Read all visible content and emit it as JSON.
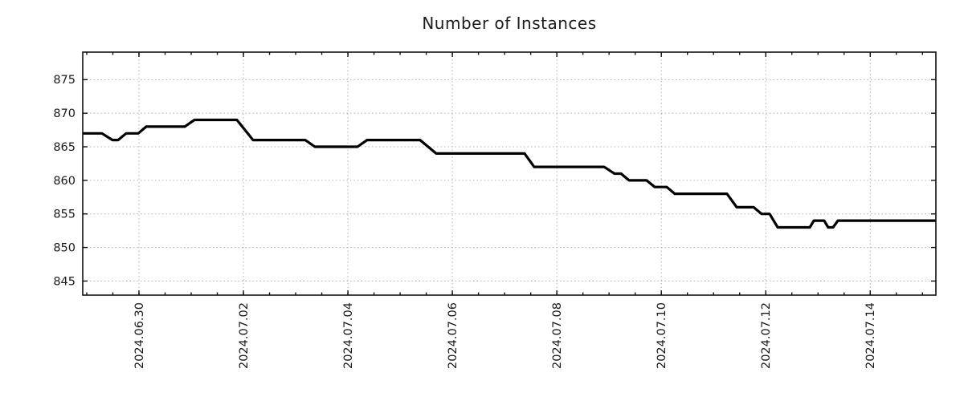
{
  "title": "Number of Instances",
  "styles": {
    "background": "#ffffff",
    "line_color": "#000000",
    "spine_color": "#111111",
    "grid_color": "#b0b0b0",
    "tick_label_color": "#1a1a1a",
    "title_color": "#1c1c1c"
  },
  "chart_data": {
    "type": "line",
    "title": "Number of Instances",
    "xlabel": "",
    "ylabel": "",
    "legend_position": "none",
    "grid": {
      "show": true,
      "style": "dotted"
    },
    "x_axis": {
      "domain": [
        "2024-06-28T22:10",
        "2024-07-15T06:10"
      ],
      "major_ticks": [
        {
          "t": "2024-06-30T00:00",
          "label": "2024.06.30"
        },
        {
          "t": "2024-07-02T00:00",
          "label": "2024.07.02"
        },
        {
          "t": "2024-07-04T00:00",
          "label": "2024.07.04"
        },
        {
          "t": "2024-07-06T00:00",
          "label": "2024.07.06"
        },
        {
          "t": "2024-07-08T00:00",
          "label": "2024.07.08"
        },
        {
          "t": "2024-07-10T00:00",
          "label": "2024.07.10"
        },
        {
          "t": "2024-07-12T00:00",
          "label": "2024.07.12"
        },
        {
          "t": "2024-07-14T00:00",
          "label": "2024.07.14"
        }
      ],
      "minor_tick_interval_hours": 12,
      "label_rotation_deg": 90
    },
    "y_axis": {
      "min": 842.9,
      "max": 879.1,
      "major_ticks": [
        845,
        850,
        855,
        860,
        865,
        870,
        875
      ]
    },
    "series": [
      {
        "name": "instances",
        "points": [
          [
            "2024-06-28T22:10",
            867
          ],
          [
            "2024-06-29T07:00",
            867
          ],
          [
            "2024-06-29T11:50",
            866
          ],
          [
            "2024-06-29T14:25",
            866
          ],
          [
            "2024-06-29T18:05",
            867
          ],
          [
            "2024-06-29T23:40",
            867
          ],
          [
            "2024-06-30T03:20",
            868
          ],
          [
            "2024-06-30T21:00",
            868
          ],
          [
            "2024-07-01T01:30",
            869
          ],
          [
            "2024-07-01T21:00",
            869
          ],
          [
            "2024-07-02T04:25",
            866
          ],
          [
            "2024-07-03T04:25",
            866
          ],
          [
            "2024-07-03T08:50",
            865
          ],
          [
            "2024-07-04T04:25",
            865
          ],
          [
            "2024-07-04T08:50",
            866
          ],
          [
            "2024-07-05T09:10",
            866
          ],
          [
            "2024-07-05T16:35",
            864
          ],
          [
            "2024-07-07T09:10",
            864
          ],
          [
            "2024-07-07T13:35",
            862
          ],
          [
            "2024-07-08T21:45",
            862
          ],
          [
            "2024-07-09T02:30",
            861
          ],
          [
            "2024-07-09T05:30",
            861
          ],
          [
            "2024-07-09T09:10",
            860
          ],
          [
            "2024-07-09T17:15",
            860
          ],
          [
            "2024-07-09T21:00",
            859
          ],
          [
            "2024-07-10T02:30",
            859
          ],
          [
            "2024-07-10T06:10",
            858
          ],
          [
            "2024-07-11T06:10",
            858
          ],
          [
            "2024-07-11T10:40",
            856
          ],
          [
            "2024-07-11T18:25",
            856
          ],
          [
            "2024-07-11T22:05",
            855
          ],
          [
            "2024-07-12T01:45",
            855
          ],
          [
            "2024-07-12T05:30",
            853
          ],
          [
            "2024-07-12T20:15",
            853
          ],
          [
            "2024-07-12T22:05",
            854
          ],
          [
            "2024-07-13T02:50",
            854
          ],
          [
            "2024-07-13T04:40",
            853
          ],
          [
            "2024-07-13T06:55",
            853
          ],
          [
            "2024-07-13T09:10",
            854
          ],
          [
            "2024-07-15T06:10",
            854
          ]
        ]
      }
    ]
  }
}
